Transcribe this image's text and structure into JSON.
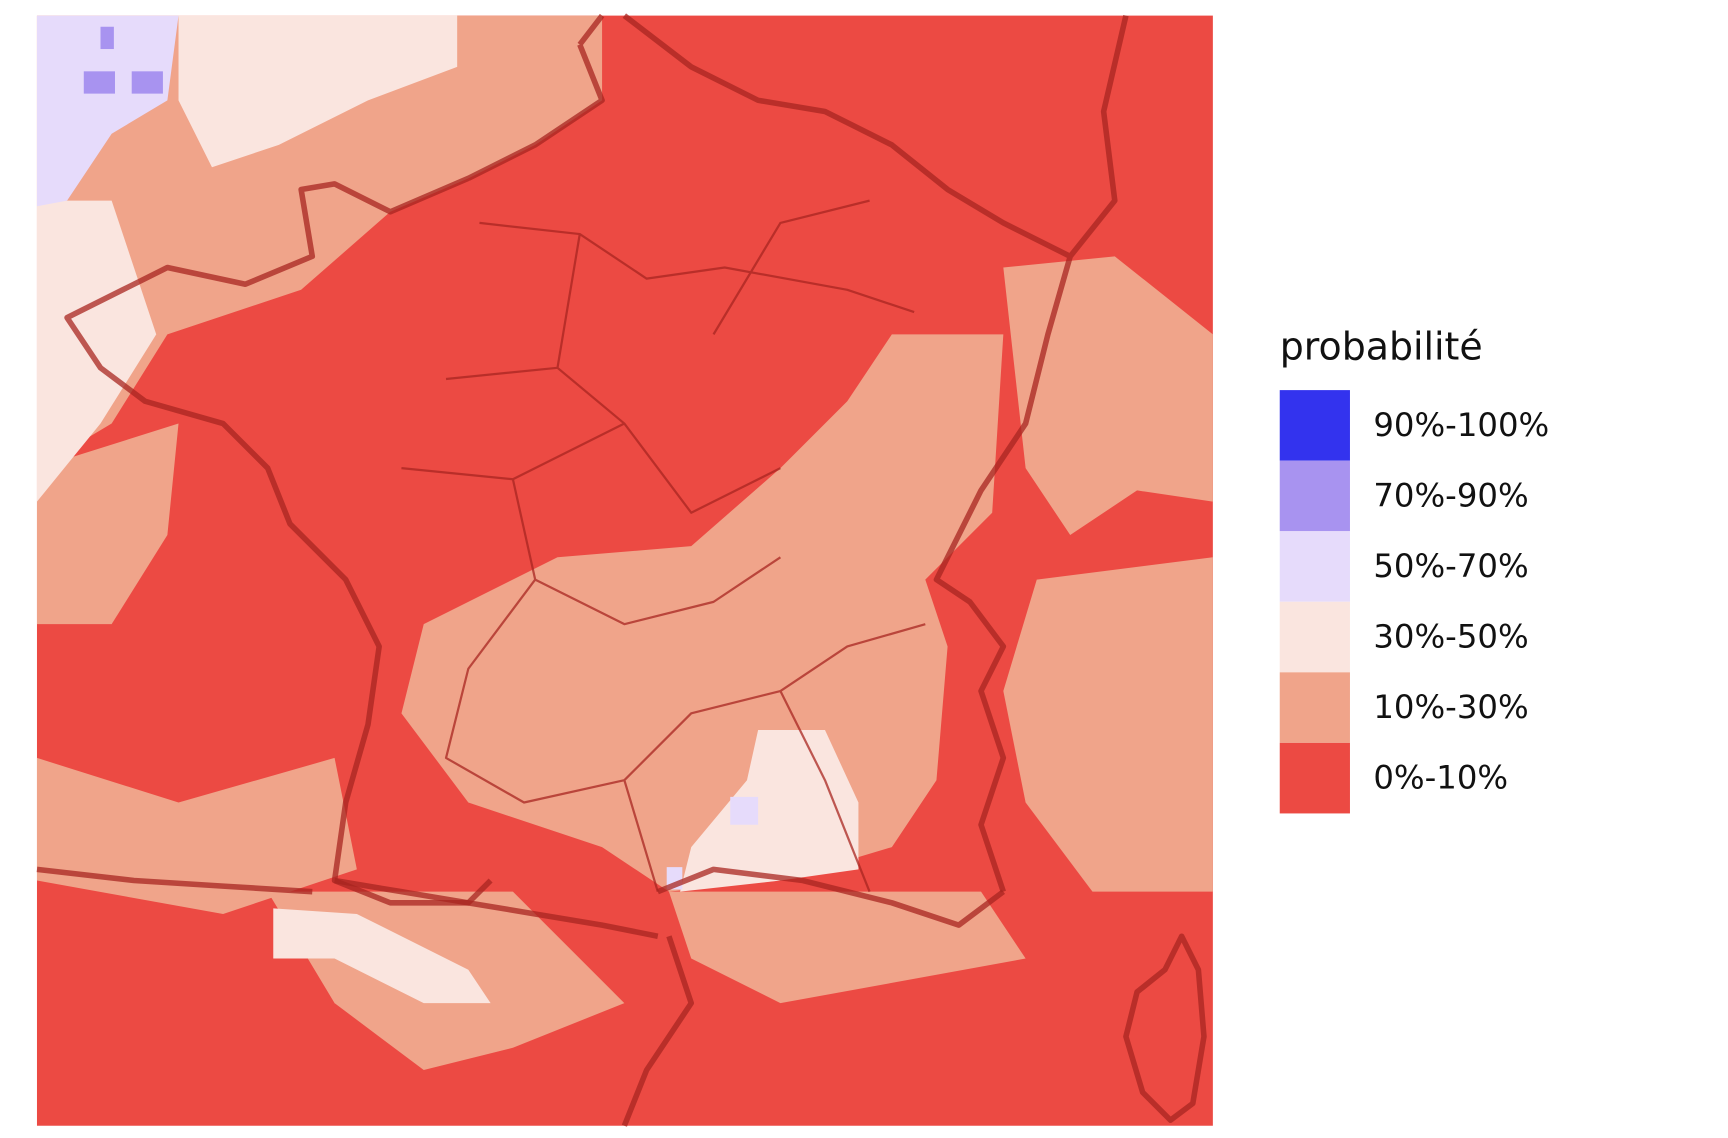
{
  "legend": {
    "title": "probabilité",
    "items": [
      {
        "label": "90%-100%",
        "color": "#3333ee"
      },
      {
        "label": "70%-90%",
        "color": "#a893f0"
      },
      {
        "label": "50%-70%",
        "color": "#e6dbfb"
      },
      {
        "label": "30%-50%",
        "color": "#fae5df"
      },
      {
        "label": "10%-30%",
        "color": "#f0a48a"
      },
      {
        "label": "0%-10%",
        "color": "#ec4a43"
      }
    ]
  }
}
